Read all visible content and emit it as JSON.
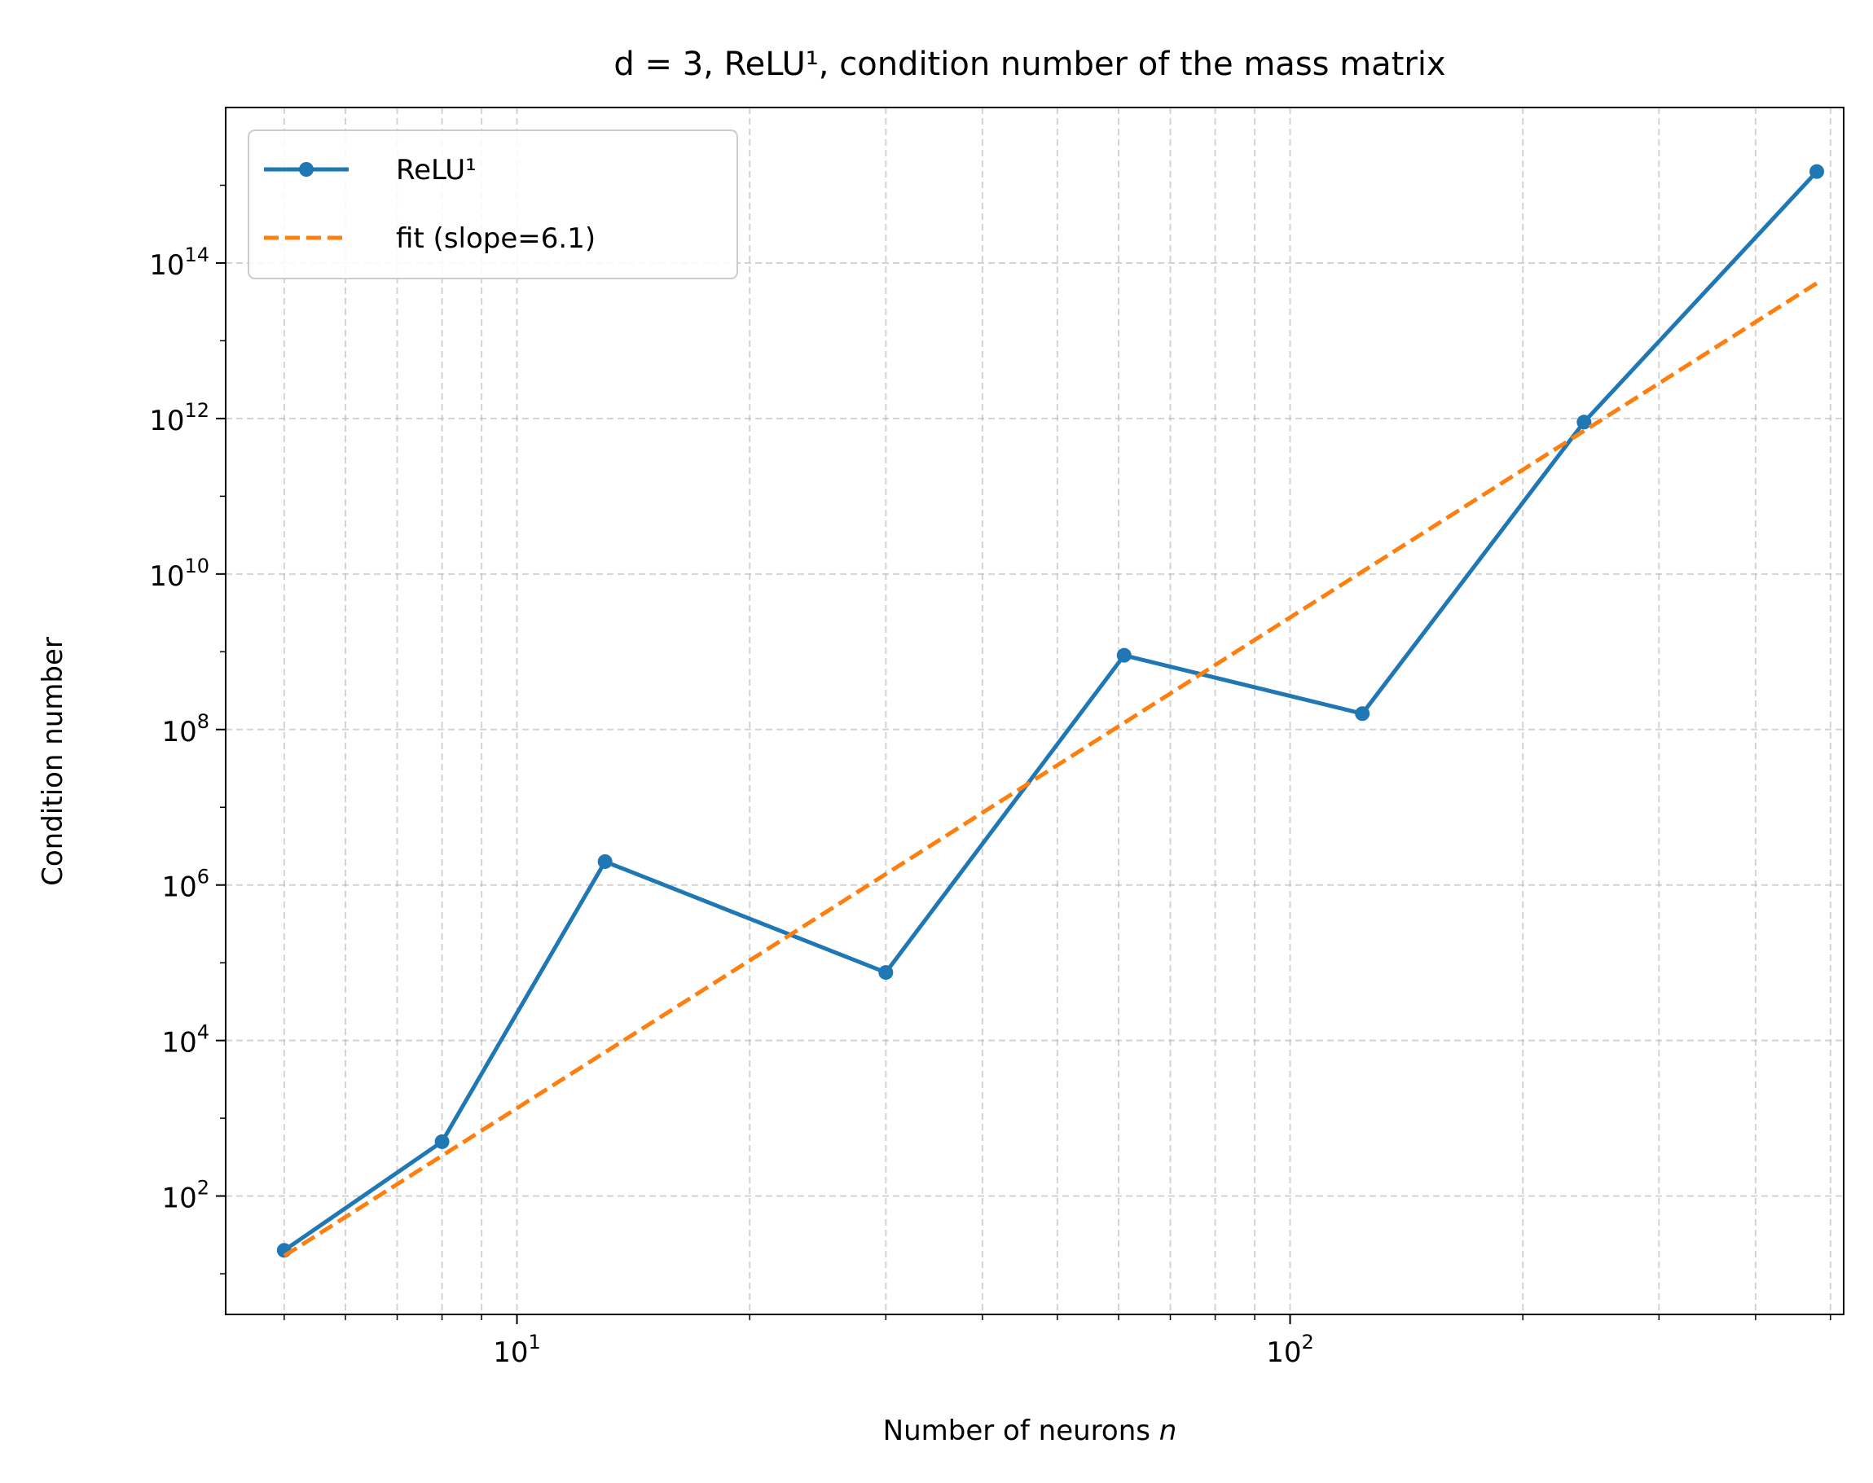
{
  "chart_data": {
    "type": "line",
    "title": "d = 3, ReLU¹, condition number of the mass matrix",
    "xlabel": "Number of neurons",
    "xlabel_var": "n",
    "ylabel": "Condition number",
    "xscale": "log",
    "yscale": "log",
    "xlim": [
      4.2,
      520
    ],
    "ylim": [
      3,
      1e+16
    ],
    "grid": true,
    "legend_position": "top-left",
    "x_ticks": [
      {
        "value": 10,
        "base": "10",
        "exp": "1"
      },
      {
        "value": 100,
        "base": "10",
        "exp": "2"
      }
    ],
    "y_ticks": [
      {
        "value": 100.0,
        "base": "10",
        "exp": "2"
      },
      {
        "value": 10000.0,
        "base": "10",
        "exp": "4"
      },
      {
        "value": 1000000.0,
        "base": "10",
        "exp": "6"
      },
      {
        "value": 100000000.0,
        "base": "10",
        "exp": "8"
      },
      {
        "value": 10000000000.0,
        "base": "10",
        "exp": "10"
      },
      {
        "value": 1000000000000.0,
        "base": "10",
        "exp": "12"
      },
      {
        "value": 100000000000000.0,
        "base": "10",
        "exp": "14"
      }
    ],
    "series": [
      {
        "name": "ReLU¹",
        "style": "solid-marker",
        "color": "#1f77b4",
        "x": [
          5,
          8,
          13,
          30,
          61,
          124,
          240,
          480
        ],
        "y": [
          20,
          500,
          2000000.0,
          75000.0,
          900000000.0,
          160000000.0,
          900000000000.0,
          1500000000000000.0
        ]
      },
      {
        "name": "fit (slope=6.1)",
        "style": "dashed",
        "color": "#ff7f0e",
        "x": [
          5,
          480
        ],
        "y": [
          17,
          55000000000000.0
        ]
      }
    ]
  }
}
